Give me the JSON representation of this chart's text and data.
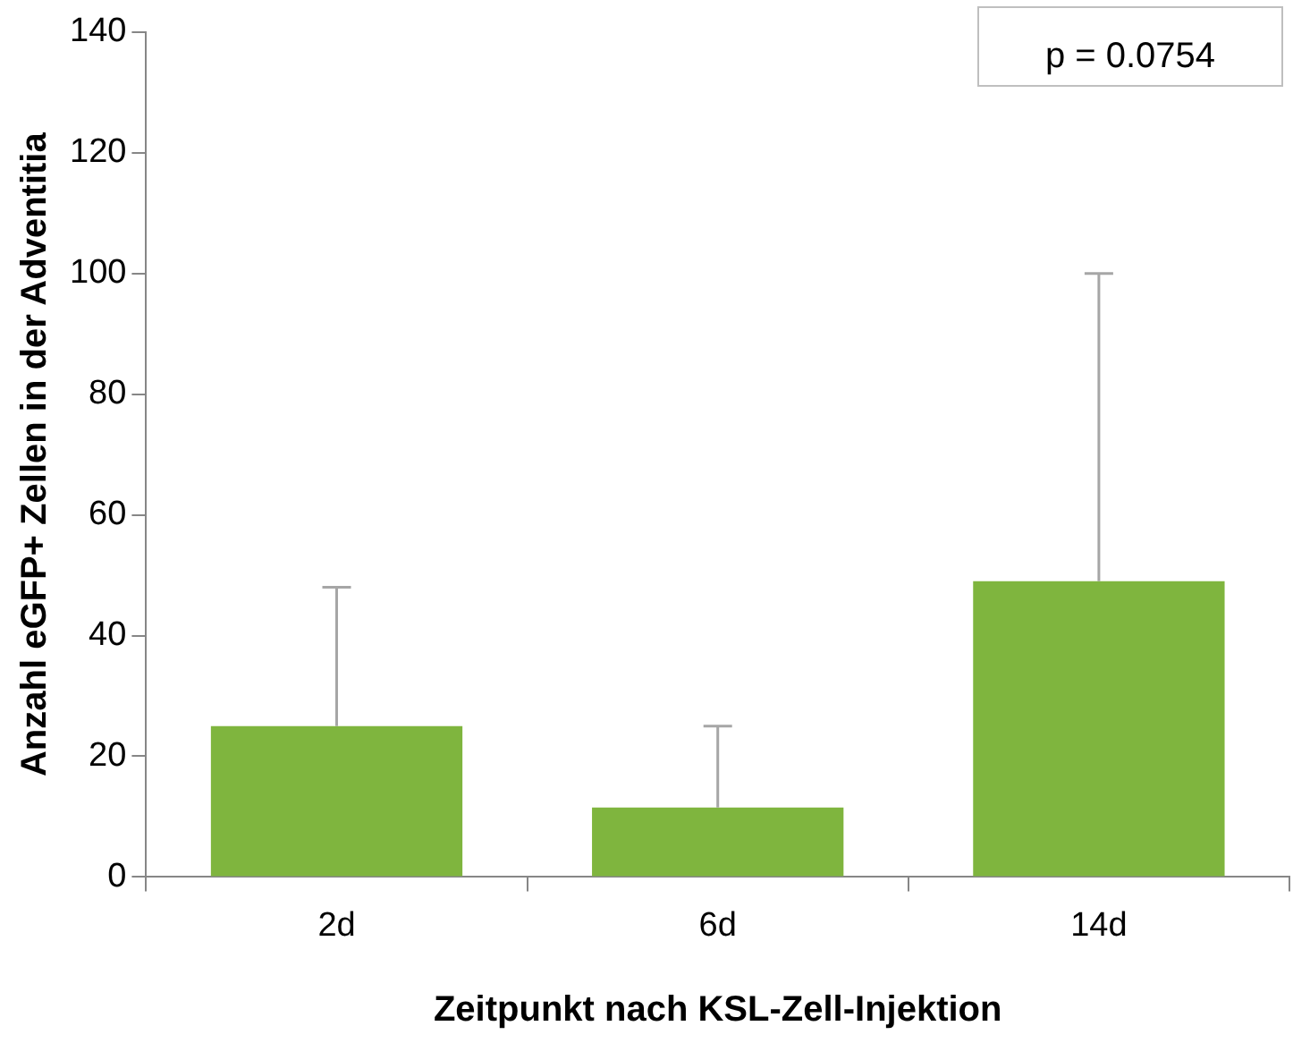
{
  "chart_data": {
    "type": "bar",
    "categories": [
      "2d",
      "6d",
      "14d"
    ],
    "values": [
      25,
      11.5,
      49
    ],
    "errors": [
      [
        25,
        48
      ],
      [
        11.5,
        25
      ],
      [
        49,
        100
      ]
    ],
    "color": "#7fb53e",
    "xlabel": "Zeitpunkt nach KSL-Zell-Injektion",
    "ylabel": "Anzahl eGFP+ Zellen in der Adventitia",
    "ylim": [
      0,
      140
    ],
    "yticks": [
      0,
      20,
      40,
      60,
      80,
      100,
      120,
      140
    ],
    "annotations": [
      "p = 0.0754"
    ],
    "grid": false,
    "legend": false
  }
}
